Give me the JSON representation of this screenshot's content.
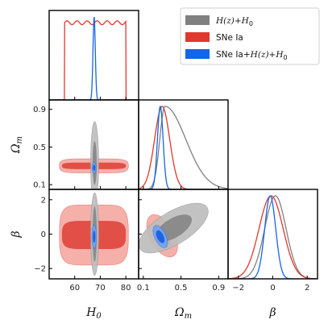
{
  "chart_data": {
    "type": "corner",
    "parameters": [
      {
        "symbol": "H",
        "sub": "0",
        "range": [
          50,
          85
        ],
        "ticks": [
          60,
          70,
          80
        ],
        "tick_labels": [
          "60",
          "70",
          "80"
        ]
      },
      {
        "symbol": "Ω",
        "sub": "m",
        "range": [
          0.05,
          1.0
        ],
        "ticks": [
          0.1,
          0.5,
          0.9
        ],
        "tick_labels": [
          "0.1",
          "0.5",
          "0.9"
        ]
      },
      {
        "symbol": "β",
        "sub": "",
        "range": [
          -2.6,
          2.6
        ],
        "ticks": [
          -2,
          0,
          2
        ],
        "tick_labels": [
          "−2",
          "0",
          "2"
        ]
      }
    ],
    "legend": {
      "placement": "top-right",
      "entries": [
        {
          "key": "hz",
          "label_math": "H(z)+H",
          "label_sub": "0",
          "color": "#808080"
        },
        {
          "key": "sne",
          "label_text": "SNe Ia",
          "color": "#e0382c"
        },
        {
          "key": "comb",
          "label_text": "SNe Ia+",
          "label_math": "H(z)+H",
          "label_sub": "0",
          "color": "#1565e8"
        }
      ]
    },
    "series": [
      {
        "key": "hz",
        "color": "#808080",
        "light": "#bdbdbd",
        "dark": "#888888",
        "marginals": [
          {
            "type": "gauss",
            "mean": 67.8,
            "sigma": 0.6
          },
          {
            "type": "skew",
            "mode": 0.33,
            "sigma_left": 0.055,
            "sigma_right": 0.22
          },
          {
            "type": "gauss",
            "mean": 0.15,
            "sigma": 0.62
          }
        ],
        "contours": {
          "1-0": {
            "center": [
              67.8,
              0.33
            ],
            "r68": [
              0.8,
              0.23
            ],
            "r95": [
              1.6,
              0.44
            ],
            "angle": 0
          },
          "2-0": {
            "center": [
              67.8,
              0.0
            ],
            "r68": [
              0.8,
              1.6
            ],
            "r95": [
              1.6,
              2.4
            ],
            "angle": 0
          },
          "2-1": {
            "center": [
              0.42,
              0.35
            ],
            "r68": [
              0.22,
              0.55
            ],
            "r95": [
              0.42,
              0.95
            ],
            "angle": 0.55
          }
        }
      },
      {
        "key": "sne",
        "color": "#e0382c",
        "light": "#f4a9a3",
        "dark": "#e04a40",
        "marginals": [
          {
            "type": "flat",
            "lo": 56,
            "hi": 80,
            "level": 0.93
          },
          {
            "type": "gauss",
            "mean": 0.3,
            "sigma": 0.08
          },
          {
            "type": "gauss",
            "mean": -0.1,
            "sigma": 0.7
          }
        ],
        "contours": {
          "1-0": {
            "center": [
              67.5,
              0.3
            ],
            "r68": [
              12.5,
              0.035
            ],
            "r95": [
              13.5,
              0.075
            ],
            "angle": 0
          },
          "2-0": {
            "center": [
              67.5,
              -0.05
            ],
            "r68": [
              12.5,
              0.82
            ],
            "r95": [
              13.5,
              1.75
            ],
            "angle": 0
          },
          "2-1": {
            "center": [
              0.3,
              -0.1
            ],
            "r68": [
              0.07,
              0.75
            ],
            "r95": [
              0.13,
              1.35
            ],
            "angle": 0.5
          }
        }
      },
      {
        "key": "comb",
        "color": "#1565e8",
        "light": "#6fa3f0",
        "dark": "#1a5fe0",
        "marginals": [
          {
            "type": "gauss",
            "mean": 67.6,
            "sigma": 0.45
          },
          {
            "type": "gauss",
            "mean": 0.28,
            "sigma": 0.03
          },
          {
            "type": "gauss",
            "mean": -0.15,
            "sigma": 0.32
          }
        ],
        "contours": {
          "1-0": {
            "center": [
              67.6,
              0.28
            ],
            "r68": [
              0.5,
              0.032
            ],
            "r95": [
              0.85,
              0.06
            ],
            "angle": 0
          },
          "2-0": {
            "center": [
              67.6,
              -0.15
            ],
            "r68": [
              0.5,
              0.35
            ],
            "r95": [
              0.9,
              0.7
            ],
            "angle": 0
          },
          "2-1": {
            "center": [
              0.28,
              -0.15
            ],
            "r68": [
              0.035,
              0.4
            ],
            "r95": [
              0.06,
              0.7
            ],
            "angle": 0.45
          }
        }
      }
    ]
  }
}
